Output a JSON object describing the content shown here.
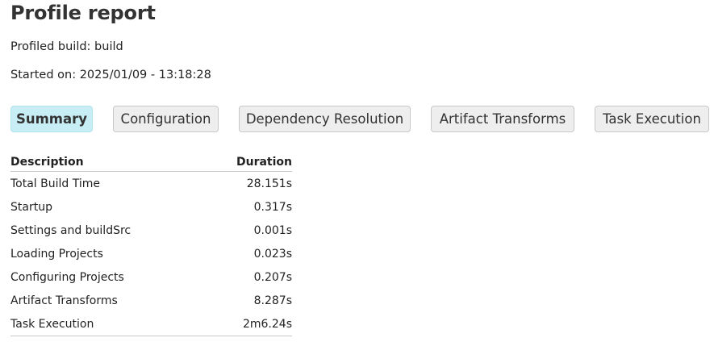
{
  "title": "Profile report",
  "profiled_build": "Profiled build: build",
  "started_on": "Started on: 2025/01/09 - 13:18:28",
  "tabs": [
    {
      "label": "Summary",
      "selected": true
    },
    {
      "label": "Configuration",
      "selected": false
    },
    {
      "label": "Dependency Resolution",
      "selected": false
    },
    {
      "label": "Artifact Transforms",
      "selected": false
    },
    {
      "label": "Task Execution",
      "selected": false
    }
  ],
  "table": {
    "headers": {
      "description": "Description",
      "duration": "Duration"
    },
    "rows": [
      {
        "description": "Total Build Time",
        "duration": "28.151s"
      },
      {
        "description": "Startup",
        "duration": "0.317s"
      },
      {
        "description": "Settings and buildSrc",
        "duration": "0.001s"
      },
      {
        "description": "Loading Projects",
        "duration": "0.023s"
      },
      {
        "description": "Configuring Projects",
        "duration": "0.207s"
      },
      {
        "description": "Artifact Transforms",
        "duration": "8.287s"
      },
      {
        "description": "Task Execution",
        "duration": "2m6.24s"
      }
    ]
  },
  "colors": {
    "selected_tab_bg": "#c6eef4",
    "tab_bg": "#eeeeee",
    "border": "#c8c8c8"
  }
}
